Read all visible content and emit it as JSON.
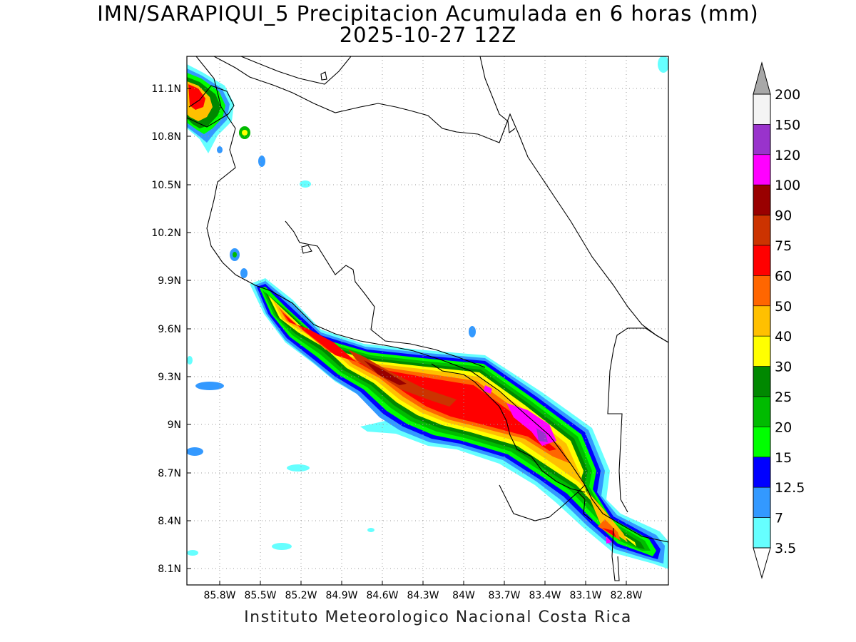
{
  "header": {
    "title_line_1": "IMN/SARAPIQUI_5 Precipitacion Acumulada en 6 horas (mm)",
    "title_line_2": "2025-10-27 12Z"
  },
  "map": {
    "x_axis_ticks": [
      "85.8W",
      "85.5W",
      "85.2W",
      "84.9W",
      "84.6W",
      "84.3W",
      "84W",
      "83.7W",
      "83.4W",
      "83.1W",
      "82.8W"
    ],
    "y_axis_ticks": [
      "11.1N",
      "10.8N",
      "10.5N",
      "10.2N",
      "9.9N",
      "9.6N",
      "9.3N",
      "9N",
      "8.7N",
      "8.4N",
      "8.1N"
    ],
    "grid": true,
    "coastline_color": "#000000"
  },
  "colorbar": {
    "levels": [
      "200",
      "150",
      "120",
      "100",
      "90",
      "75",
      "60",
      "50",
      "40",
      "30",
      "25",
      "20",
      "15",
      "12.5",
      "7",
      "3.5"
    ],
    "colors": [
      "#a8a8a8",
      "#f4f4f4",
      "#9933cc",
      "#ff00ff",
      "#990000",
      "#cc3300",
      "#ff0000",
      "#ff6600",
      "#ffc000",
      "#ffff00",
      "#008800",
      "#00bb00",
      "#00ff00",
      "#0000ff",
      "#3399ff",
      "#66ffff",
      "#ffffff"
    ]
  },
  "footer": {
    "text": "Instituto Meteorologico Nacional Costa Rica"
  }
}
